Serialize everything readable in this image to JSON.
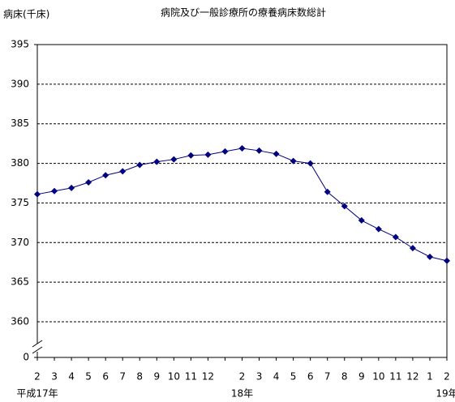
{
  "chart_data": {
    "type": "line",
    "title": "病院及び一般診療所の療養病床数総計",
    "y_label": "病床(千床)",
    "categories": [
      "2",
      "3",
      "4",
      "5",
      "6",
      "7",
      "8",
      "9",
      "10",
      "11",
      "12",
      null,
      "2",
      "3",
      "4",
      "5",
      "6",
      "7",
      "8",
      "9",
      "10",
      "11",
      "12",
      "1",
      "2"
    ],
    "year_labels": [
      "平成17年",
      "18年",
      "19年"
    ],
    "series": [
      {
        "name": "療養病床数",
        "color": "#000080",
        "values": [
          376.1,
          376.5,
          376.9,
          377.6,
          378.5,
          379.0,
          379.8,
          380.2,
          380.5,
          381.0,
          381.1,
          381.5,
          381.9,
          381.6,
          381.2,
          380.3,
          380.0,
          376.4,
          374.6,
          372.8,
          371.7,
          370.7,
          369.3,
          368.2,
          367.7
        ]
      }
    ],
    "ylim": [
      0,
      395
    ],
    "yticks": [
      0,
      360,
      365,
      370,
      375,
      380,
      385,
      390,
      395
    ],
    "axis_break": true,
    "grid": true
  }
}
